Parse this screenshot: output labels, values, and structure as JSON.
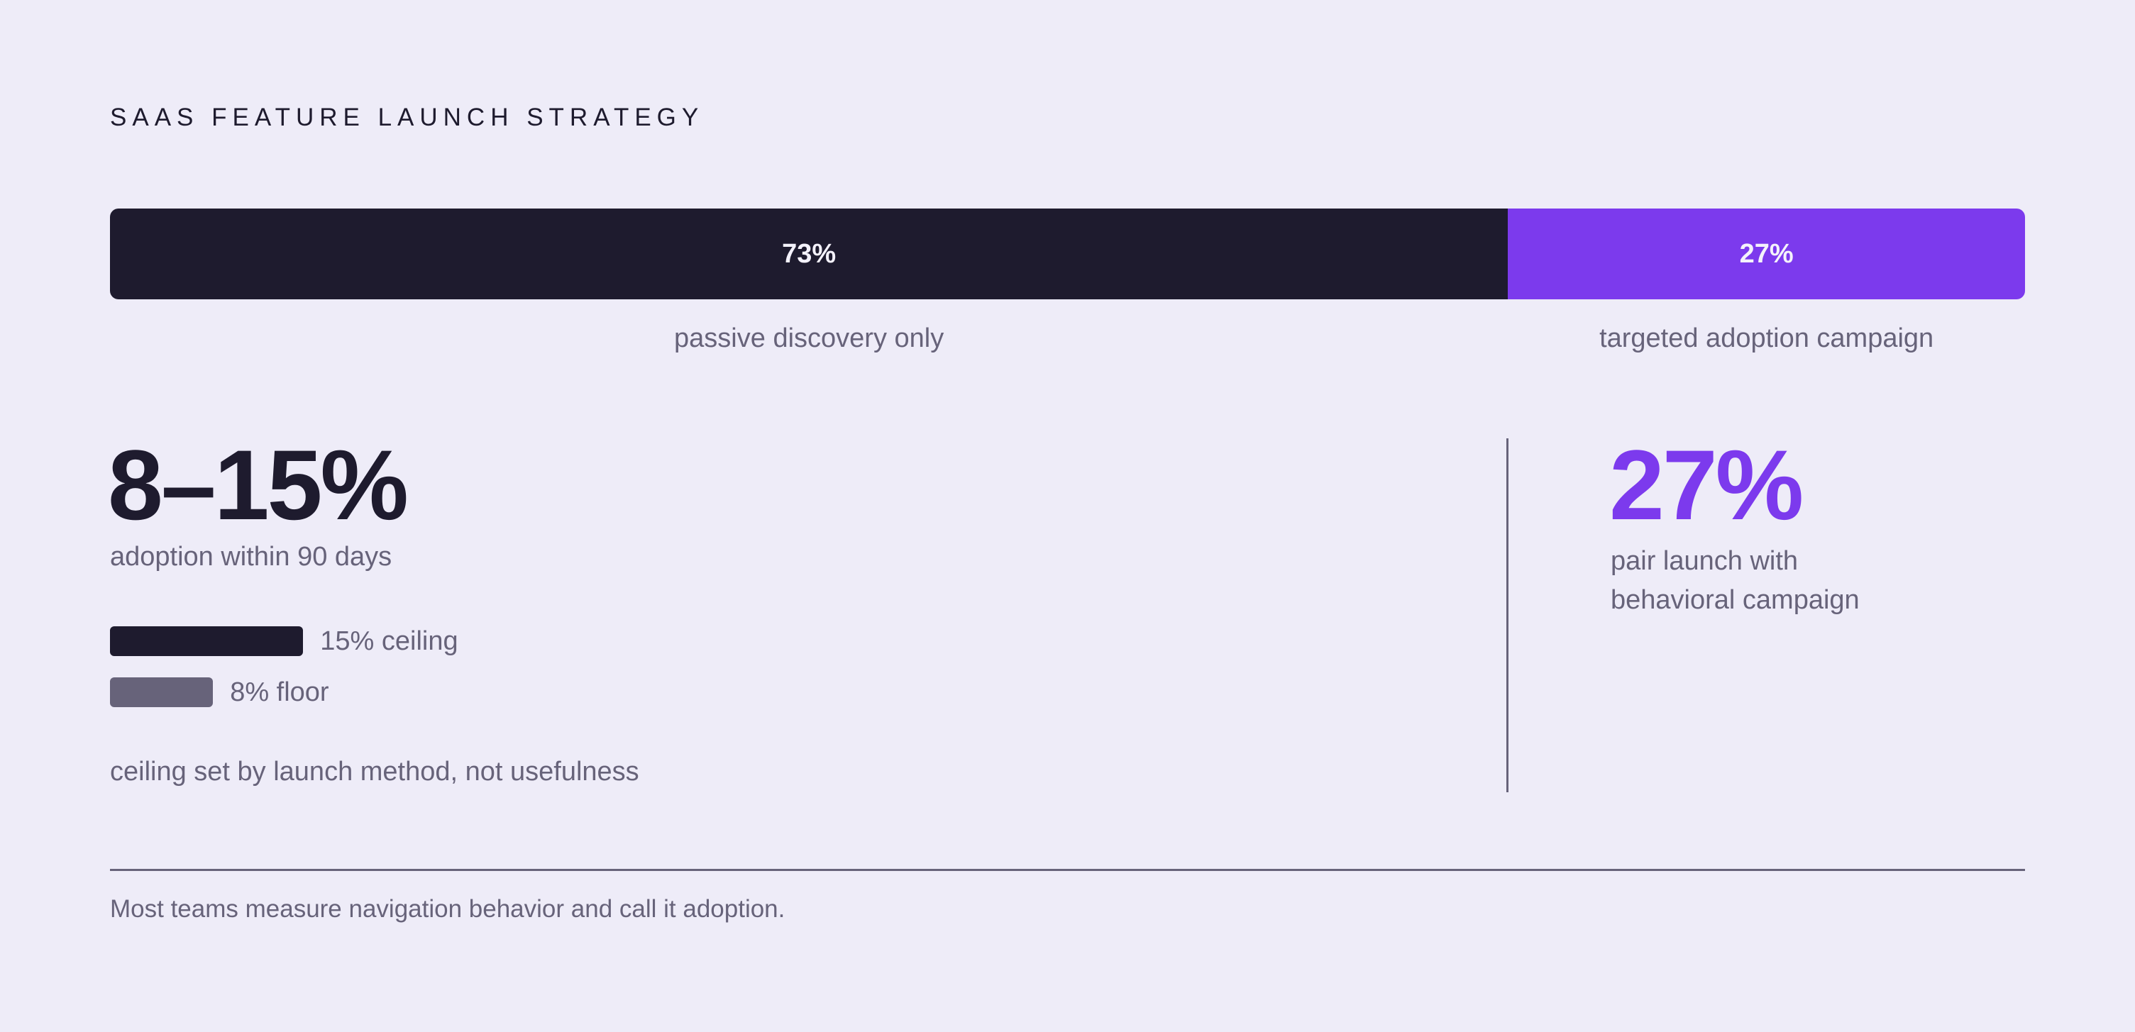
{
  "title": "SAAS FEATURE LAUNCH STRATEGY",
  "split": {
    "segments": [
      {
        "value": 73,
        "label": "73%",
        "caption": "passive discovery only",
        "color": "#1e1b2e"
      },
      {
        "value": 27,
        "label": "27%",
        "caption": "targeted adoption campaign",
        "color": "#7c3aed"
      }
    ]
  },
  "left": {
    "headline": "8–15%",
    "subtitle": "adoption within 90 days",
    "bars": [
      {
        "value": 15,
        "label": "15% ceiling",
        "color": "#1e1b2e"
      },
      {
        "value": 8,
        "label": "8% floor",
        "color": "#67637a"
      }
    ],
    "note": "ceiling set by launch method, not usefulness"
  },
  "right": {
    "headline": "27%",
    "subtitle": [
      "pair launch with",
      "behavioral campaign"
    ]
  },
  "footer": "Most teams measure navigation behavior and call it adoption."
}
